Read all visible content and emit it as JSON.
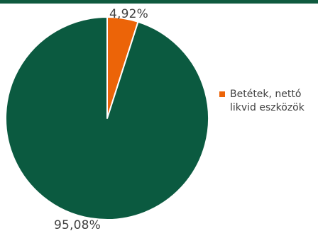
{
  "colors": {
    "top_bar": "#0f5a3f",
    "series_large": "#0b5a40",
    "series_small": "#ec6408"
  },
  "chart_data": {
    "type": "pie",
    "title": "",
    "slices": [
      {
        "label": "4,92%",
        "value": 4.92,
        "color": "#ec6408"
      },
      {
        "label": "95,08%",
        "value": 95.08,
        "color": "#0b5a40"
      }
    ],
    "legend": {
      "placement": "right",
      "entries": [
        {
          "name": "Betétek, nettó likvid eszközök",
          "color": "#ec6408"
        }
      ]
    }
  }
}
